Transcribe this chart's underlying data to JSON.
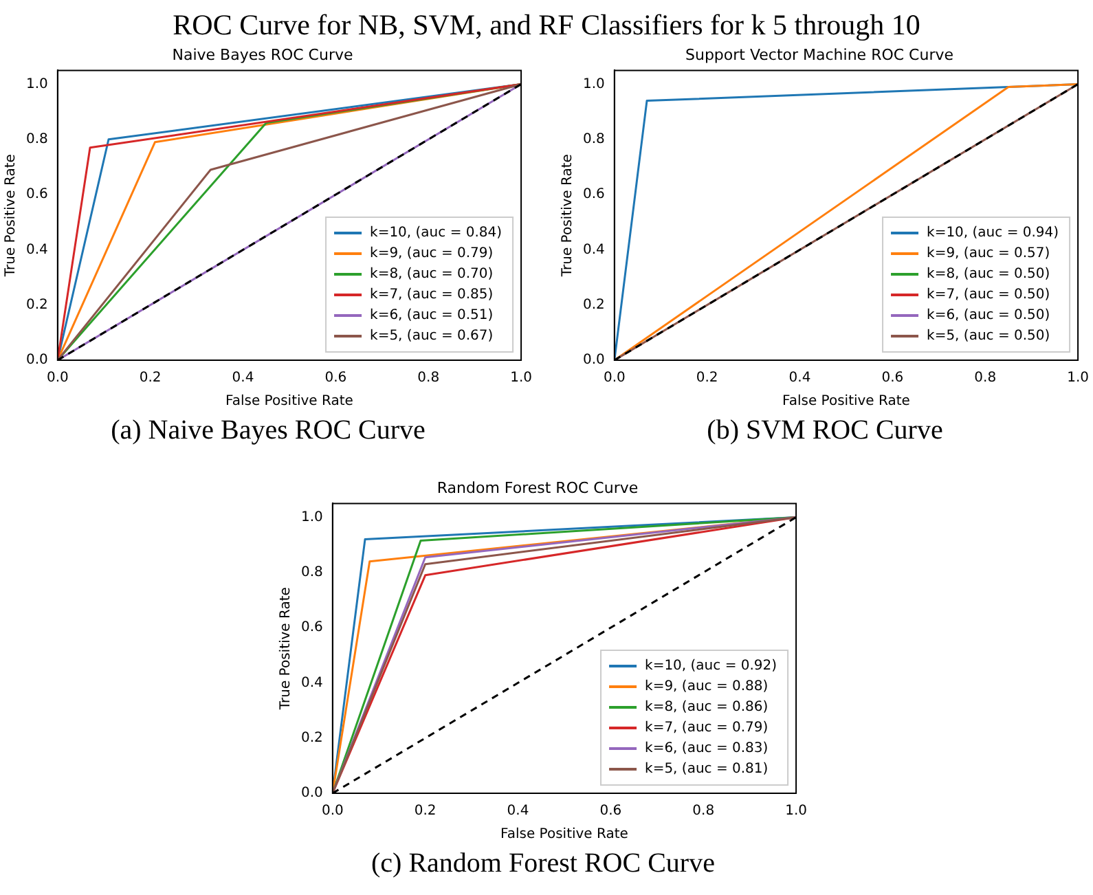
{
  "chart_data": [
    {
      "type": "other",
      "title": "ROC Curve for NB, SVM, and RF Classifiers for k 5 through 10"
    },
    {
      "type": "line",
      "title": "Naive Bayes ROC Curve",
      "xlabel": "False Positive Rate",
      "ylabel": "True Positive Rate",
      "annotations": [
        "(a) Naive Bayes ROC Curve"
      ],
      "legend": "bottom right",
      "grid": false,
      "xlim": [
        0,
        1
      ],
      "ylim": [
        0,
        1.05
      ],
      "xticks": [
        {
          "value": 0,
          "label": "0.0"
        },
        {
          "value": 0.2,
          "label": "0.2"
        },
        {
          "value": 0.4,
          "label": "0.4"
        },
        {
          "value": 0.6,
          "label": "0.6"
        },
        {
          "value": 0.8,
          "label": "0.8"
        },
        {
          "value": 1,
          "label": "1.0"
        }
      ],
      "yticks": [
        {
          "value": 0,
          "label": "0.0"
        },
        {
          "value": 0.2,
          "label": "0.2"
        },
        {
          "value": 0.4,
          "label": "0.4"
        },
        {
          "value": 0.6,
          "label": "0.6"
        },
        {
          "value": 0.8,
          "label": "0.8"
        },
        {
          "value": 1,
          "label": "1.0"
        }
      ],
      "series": [
        {
          "name": "k=10, (auc = 0.84)",
          "color": "#1f77b4",
          "x": [
            0,
            0.11,
            1
          ],
          "values": [
            0,
            0.8,
            1
          ]
        },
        {
          "name": "k=9, (auc = 0.79)",
          "color": "#ff7f0e",
          "x": [
            0,
            0.21,
            1
          ],
          "values": [
            0,
            0.79,
            1
          ]
        },
        {
          "name": "k=8, (auc = 0.70)",
          "color": "#2ca02c",
          "x": [
            0,
            0.45,
            1
          ],
          "values": [
            0,
            0.86,
            1
          ]
        },
        {
          "name": "k=7, (auc = 0.85)",
          "color": "#d62728",
          "x": [
            0,
            0.07,
            1
          ],
          "values": [
            0,
            0.77,
            1
          ]
        },
        {
          "name": "k=6, (auc = 0.51)",
          "color": "#9467bd",
          "x": [
            0,
            1
          ],
          "values": [
            0,
            1
          ]
        },
        {
          "name": "k=5, (auc = 0.67)",
          "color": "#8c564b",
          "x": [
            0,
            0.33,
            1
          ],
          "values": [
            0,
            0.69,
            1
          ]
        },
        {
          "color": "#000000",
          "line_style": "dashed",
          "x": [
            0,
            1
          ],
          "values": [
            0,
            1
          ]
        }
      ]
    },
    {
      "type": "line",
      "title": "Support Vector Machine ROC Curve",
      "xlabel": "False Positive Rate",
      "ylabel": "True Positive Rate",
      "annotations": [
        "(b) SVM ROC Curve"
      ],
      "legend": "bottom right",
      "grid": false,
      "xlim": [
        0,
        1
      ],
      "ylim": [
        0,
        1.05
      ],
      "xticks": [
        {
          "value": 0,
          "label": "0.0"
        },
        {
          "value": 0.2,
          "label": "0.2"
        },
        {
          "value": 0.4,
          "label": "0.4"
        },
        {
          "value": 0.6,
          "label": "0.6"
        },
        {
          "value": 0.8,
          "label": "0.8"
        },
        {
          "value": 1,
          "label": "1.0"
        }
      ],
      "yticks": [
        {
          "value": 0,
          "label": "0.0"
        },
        {
          "value": 0.2,
          "label": "0.2"
        },
        {
          "value": 0.4,
          "label": "0.4"
        },
        {
          "value": 0.6,
          "label": "0.6"
        },
        {
          "value": 0.8,
          "label": "0.8"
        },
        {
          "value": 1,
          "label": "1.0"
        }
      ],
      "series": [
        {
          "name": "k=10, (auc = 0.94)",
          "color": "#1f77b4",
          "x": [
            0,
            0.07,
            0.85,
            1
          ],
          "values": [
            0,
            0.94,
            0.99,
            1
          ]
        },
        {
          "name": "k=9, (auc = 0.57)",
          "color": "#ff7f0e",
          "x": [
            0,
            0.85,
            1
          ],
          "values": [
            0,
            0.99,
            1
          ]
        },
        {
          "name": "k=8, (auc = 0.50)",
          "color": "#2ca02c"
        },
        {
          "name": "k=7, (auc = 0.50)",
          "color": "#d62728"
        },
        {
          "name": "k=6, (auc = 0.50)",
          "color": "#9467bd"
        },
        {
          "name": "k=5, (auc = 0.50)",
          "color": "#8c564b",
          "x": [
            0,
            1
          ],
          "values": [
            0,
            1
          ]
        },
        {
          "color": "#000000",
          "line_style": "dashed",
          "x": [
            0,
            1
          ],
          "values": [
            0,
            1
          ]
        }
      ]
    },
    {
      "type": "line",
      "title": "Random Forest ROC Curve",
      "xlabel": "False Positive Rate",
      "ylabel": "True Positive Rate",
      "annotations": [
        "(c) Random Forest ROC Curve"
      ],
      "legend": "bottom right",
      "grid": false,
      "xlim": [
        0,
        1
      ],
      "ylim": [
        0,
        1.05
      ],
      "xticks": [
        {
          "value": 0,
          "label": "0.0"
        },
        {
          "value": 0.2,
          "label": "0.2"
        },
        {
          "value": 0.4,
          "label": "0.4"
        },
        {
          "value": 0.6,
          "label": "0.6"
        },
        {
          "value": 0.8,
          "label": "0.8"
        },
        {
          "value": 1,
          "label": "1.0"
        }
      ],
      "yticks": [
        {
          "value": 0,
          "label": "0.0"
        },
        {
          "value": 0.2,
          "label": "0.2"
        },
        {
          "value": 0.4,
          "label": "0.4"
        },
        {
          "value": 0.6,
          "label": "0.6"
        },
        {
          "value": 0.8,
          "label": "0.8"
        },
        {
          "value": 1,
          "label": "1.0"
        }
      ],
      "series": [
        {
          "name": "k=10, (auc = 0.92)",
          "color": "#1f77b4",
          "x": [
            0,
            0.07,
            1
          ],
          "values": [
            0,
            0.92,
            1
          ]
        },
        {
          "name": "k=9, (auc = 0.88)",
          "color": "#ff7f0e",
          "x": [
            0,
            0.08,
            1
          ],
          "values": [
            0,
            0.84,
            1
          ]
        },
        {
          "name": "k=8, (auc = 0.86)",
          "color": "#2ca02c",
          "x": [
            0,
            0.19,
            1
          ],
          "values": [
            0,
            0.915,
            1
          ]
        },
        {
          "name": "k=7, (auc = 0.79)",
          "color": "#d62728",
          "x": [
            0,
            0.2,
            1
          ],
          "values": [
            0,
            0.79,
            1
          ]
        },
        {
          "name": "k=6, (auc = 0.83)",
          "color": "#9467bd",
          "x": [
            0,
            0.2,
            1
          ],
          "values": [
            0,
            0.855,
            1
          ]
        },
        {
          "name": "k=5, (auc = 0.81)",
          "color": "#8c564b",
          "x": [
            0,
            0.2,
            1
          ],
          "values": [
            0,
            0.83,
            1
          ]
        },
        {
          "color": "#000000",
          "line_style": "dashed",
          "x": [
            0,
            1
          ],
          "values": [
            0,
            1
          ]
        }
      ]
    }
  ]
}
